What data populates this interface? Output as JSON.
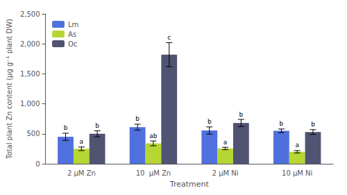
{
  "chart_data": {
    "type": "bar",
    "categories": [
      "2 μM Zn",
      "10  μM Zn",
      "2 μM Ni",
      "10 μM Ni"
    ],
    "series": [
      {
        "name": "Lm",
        "values": [
          450,
          610,
          555,
          550
        ],
        "errors": [
          60,
          50,
          60,
          30
        ],
        "annotations": [
          "b",
          "b",
          "b",
          "b"
        ]
      },
      {
        "name": "As",
        "values": [
          250,
          340,
          255,
          200
        ],
        "errors": [
          30,
          40,
          20,
          20
        ],
        "annotations": [
          "a",
          "ab",
          "a",
          "a"
        ]
      },
      {
        "name": "Oc",
        "values": [
          500,
          1820,
          680,
          530
        ],
        "errors": [
          50,
          200,
          60,
          40
        ],
        "annotations": [
          "b",
          "c",
          "b",
          "b"
        ]
      }
    ],
    "xlabel": "Treatment",
    "ylabel": "Total plant Zn content (μg g⁻¹ plant DW)",
    "ylim": [
      0,
      2500
    ],
    "yticks": [
      0,
      500,
      1000,
      1500,
      2000,
      2500
    ],
    "grid": false,
    "legend": "upper left"
  }
}
